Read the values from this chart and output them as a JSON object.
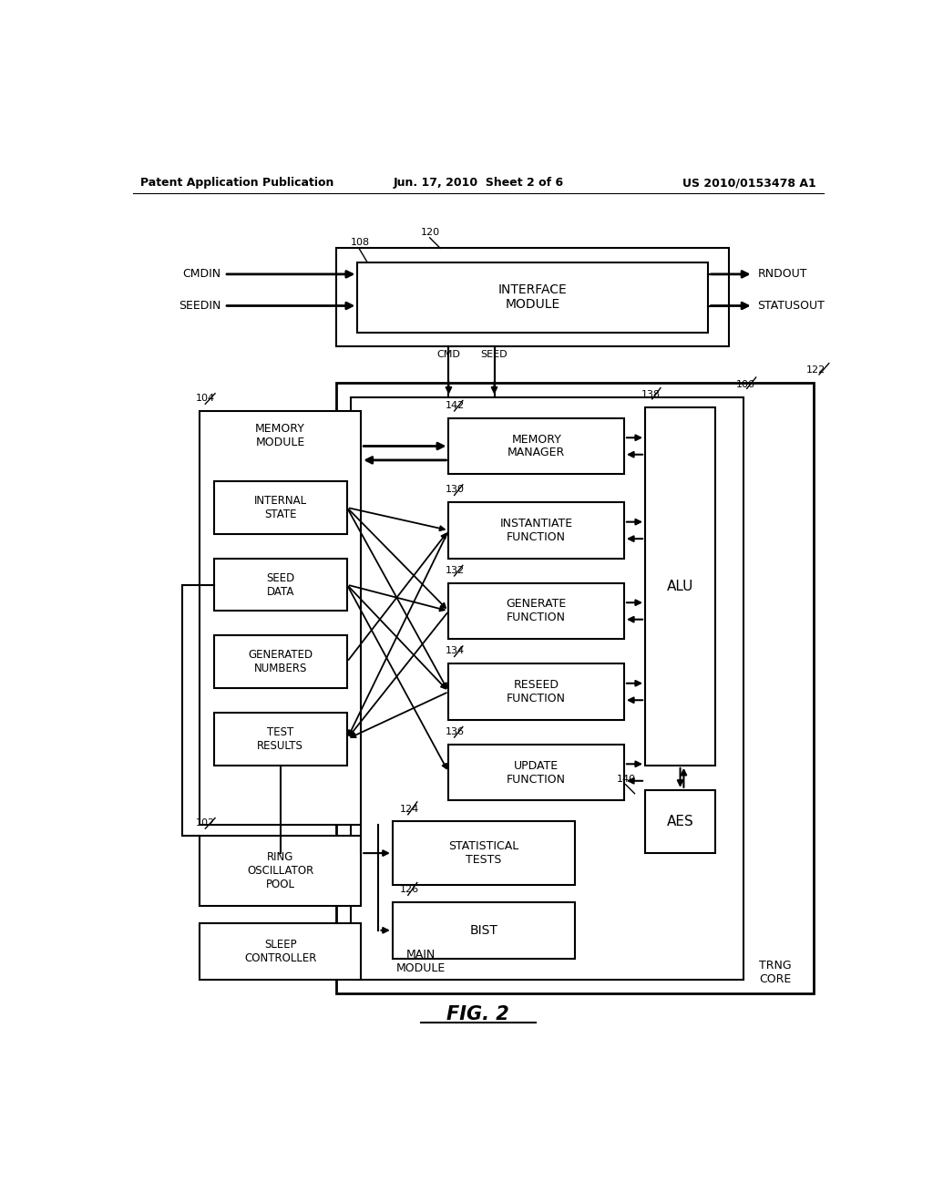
{
  "bg_color": "#ffffff",
  "header_left": "Patent Application Publication",
  "header_center": "Jun. 17, 2010  Sheet 2 of 6",
  "header_right": "US 2010/0153478 A1",
  "caption": "FIG. 2"
}
